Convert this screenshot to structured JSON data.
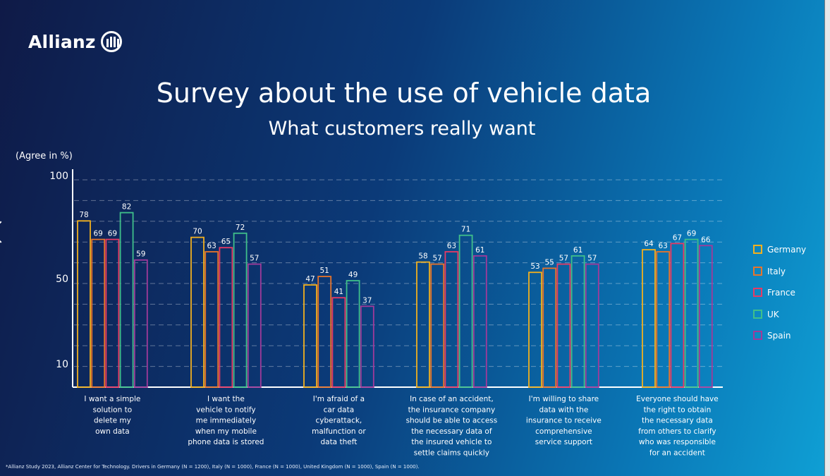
{
  "brand": {
    "name": "Allianz"
  },
  "header": {
    "title": "Survey about the use of vehicle data",
    "subtitle": "What customers really want"
  },
  "footnote": "*Allianz Study 2023, Allianz Center for Technology. Drivers in Germany (N = 1200),  Italy (N = 1000), France (N = 1000), United Kingdom (N = 1000), Spain (N = 1000).",
  "colors": {
    "Germany": "#f2b01e",
    "Italy": "#e8742a",
    "France": "#e83a64",
    "UK": "#3fbf8a",
    "Spain": "#a13a9a"
  },
  "chart_data": {
    "type": "bar",
    "ylabel": "(Agree in %)",
    "yticks": [
      100,
      50,
      10
    ],
    "categories": [
      [
        "I want a simple",
        "solution to",
        "delete my",
        "own data"
      ],
      [
        "I want the",
        "vehicle to notify",
        "me immediately",
        "when my mobile",
        "phone data is stored"
      ],
      [
        "I'm afraid of a",
        "car data",
        "cyberattack,",
        "malfunction or",
        "data theft"
      ],
      [
        "In case of an accident,",
        "the insurance company",
        "should be able to access",
        "the necessary data of",
        "the insured vehicle to",
        "settle claims quickly"
      ],
      [
        "I'm willing to share",
        "data with the",
        "insurance to receive",
        "comprehensive",
        "service support"
      ],
      [
        "Everyone should have",
        "the right to obtain",
        "the necessary data",
        "from others to clarify",
        "who was responsible",
        "for an accident"
      ]
    ],
    "series": [
      {
        "name": "Germany",
        "values": [
          78,
          70,
          47,
          58,
          53,
          64
        ]
      },
      {
        "name": "Italy",
        "values": [
          69,
          63,
          51,
          57,
          55,
          63
        ]
      },
      {
        "name": "France",
        "values": [
          69,
          65,
          41,
          63,
          57,
          67
        ]
      },
      {
        "name": "UK",
        "values": [
          82,
          72,
          49,
          71,
          61,
          69
        ]
      },
      {
        "name": "Spain",
        "values": [
          59,
          57,
          37,
          61,
          57,
          66
        ]
      }
    ],
    "legend_position": "right",
    "grid": "dashed"
  }
}
